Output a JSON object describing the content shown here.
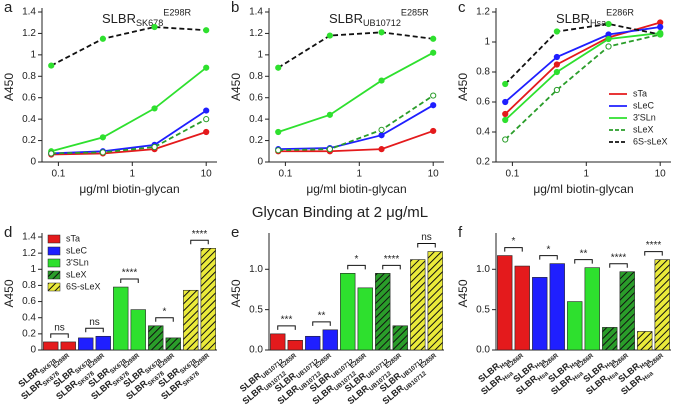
{
  "heading": "Glycan Binding at 2 μg/mL",
  "chart_data": [
    {
      "type": "line",
      "panel": "a",
      "title": {
        "text": "SLBR",
        "sub": "SK678",
        "sup": "E298R"
      },
      "x_label": "μg/ml biotin-glycan",
      "y_label": "A450",
      "log_x": true,
      "x": [
        0.08,
        0.4,
        2,
        10
      ],
      "xlim": [
        0.06,
        14
      ],
      "xticks": [
        0.1,
        1,
        10
      ],
      "ylim": [
        0,
        1.4
      ],
      "yticks": [
        0,
        0.2,
        0.4,
        0.6,
        0.8,
        1,
        1.2,
        1.4
      ],
      "series": [
        {
          "name": "sTa",
          "color": "#e41a1c",
          "values": [
            0.07,
            0.08,
            0.12,
            0.28
          ]
        },
        {
          "name": "sLeC",
          "color": "#1f1fff",
          "values": [
            0.08,
            0.1,
            0.16,
            0.48
          ]
        },
        {
          "name": "3'SLn",
          "color": "#2ee02e",
          "values": [
            0.1,
            0.23,
            0.5,
            0.88
          ]
        },
        {
          "name": "sLeX",
          "color": "#2a9d2a",
          "dashed": true,
          "open_markers": true,
          "values": [
            0.08,
            0.09,
            0.14,
            0.4
          ]
        },
        {
          "name": "6S-sLeX",
          "color": "#111111",
          "marker_color": "#2ee02e",
          "dashed": true,
          "values": [
            0.9,
            1.15,
            1.26,
            1.23
          ]
        }
      ]
    },
    {
      "type": "line",
      "panel": "b",
      "title": {
        "text": "SLBR",
        "sub": "UB10712",
        "sup": "E285R"
      },
      "x_label": "μg/ml biotin-glycan",
      "y_label": "A450",
      "log_x": true,
      "x": [
        0.08,
        0.4,
        2,
        10
      ],
      "xlim": [
        0.06,
        14
      ],
      "xticks": [
        0.1,
        1,
        10
      ],
      "ylim": [
        0,
        1.4
      ],
      "yticks": [
        0,
        0.2,
        0.4,
        0.6,
        0.8,
        1,
        1.2,
        1.4
      ],
      "series": [
        {
          "name": "sTa",
          "color": "#e41a1c",
          "values": [
            0.1,
            0.1,
            0.12,
            0.29
          ]
        },
        {
          "name": "sLeC",
          "color": "#1f1fff",
          "values": [
            0.12,
            0.13,
            0.25,
            0.53
          ]
        },
        {
          "name": "3'SLn",
          "color": "#2ee02e",
          "values": [
            0.28,
            0.44,
            0.76,
            1.02
          ]
        },
        {
          "name": "sLeX",
          "color": "#2a9d2a",
          "dashed": true,
          "open_markers": true,
          "values": [
            0.11,
            0.12,
            0.3,
            0.62
          ]
        },
        {
          "name": "6S-sLeX",
          "color": "#111111",
          "marker_color": "#2ee02e",
          "dashed": true,
          "values": [
            0.88,
            1.18,
            1.21,
            1.15
          ]
        }
      ]
    },
    {
      "type": "line",
      "panel": "c",
      "title": {
        "text": "SLBR",
        "sub": "Hsa",
        "sup": "E286R"
      },
      "x_label": "μg/ml biotin-glycan",
      "y_label": "A450",
      "log_x": true,
      "legend": "lower right",
      "x": [
        0.08,
        0.4,
        2,
        10
      ],
      "xlim": [
        0.06,
        14
      ],
      "xticks": [
        0.1,
        1,
        10
      ],
      "ylim": [
        0.2,
        1.2
      ],
      "yticks": [
        0.2,
        0.4,
        0.6,
        0.8,
        1,
        1.2
      ],
      "series": [
        {
          "name": "sTa",
          "color": "#e41a1c",
          "values": [
            0.52,
            0.85,
            1.03,
            1.13
          ]
        },
        {
          "name": "sLeC",
          "color": "#1f1fff",
          "values": [
            0.6,
            0.9,
            1.05,
            1.1
          ]
        },
        {
          "name": "3'SLn",
          "color": "#2ee02e",
          "values": [
            0.48,
            0.8,
            1.02,
            1.06
          ]
        },
        {
          "name": "sLeX",
          "color": "#2a9d2a",
          "dashed": true,
          "open_markers": true,
          "values": [
            0.35,
            0.68,
            0.97,
            1.05
          ]
        },
        {
          "name": "6S-sLeX",
          "color": "#111111",
          "marker_color": "#2ee02e",
          "dashed": true,
          "values": [
            0.72,
            1.07,
            1.12,
            1.05
          ]
        }
      ]
    },
    {
      "type": "bar",
      "panel": "d",
      "y_label": "A450",
      "legend": "upper left",
      "categories": [
        {
          "text": "SLBR",
          "sub": "SK678"
        },
        {
          "text": "SLBR",
          "sub": "SK678",
          "sup": "E298R"
        },
        {
          "text": "SLBR",
          "sub": "SK678"
        },
        {
          "text": "SLBR",
          "sub": "SK678",
          "sup": "E298R"
        },
        {
          "text": "SLBR",
          "sub": "SK678"
        },
        {
          "text": "SLBR",
          "sub": "SK678",
          "sup": "E298R"
        },
        {
          "text": "SLBR",
          "sub": "SK678"
        },
        {
          "text": "SLBR",
          "sub": "SK678",
          "sup": "E298R"
        },
        {
          "text": "SLBR",
          "sub": "SK678"
        },
        {
          "text": "SLBR",
          "sub": "SK678",
          "sup": "E298R"
        }
      ],
      "ylim": [
        0,
        1.4
      ],
      "yticks": [
        0,
        0.2,
        0.4,
        0.6,
        0.8,
        1,
        1.2,
        1.4
      ],
      "significance": [
        "ns",
        "ns",
        "****",
        "*",
        "****"
      ],
      "series": [
        {
          "name": "sTa",
          "color": "#e41a1c",
          "values": [
            0.1,
            0.1,
            null,
            null,
            null,
            null,
            null,
            null,
            null,
            null
          ]
        },
        {
          "name": "sLeC",
          "color": "#1f1fff",
          "values": [
            null,
            null,
            0.15,
            0.17,
            null,
            null,
            null,
            null,
            null,
            null
          ]
        },
        {
          "name": "3'SLn",
          "color": "#2ee02e",
          "values": [
            null,
            null,
            null,
            null,
            0.78,
            0.5,
            null,
            null,
            null,
            null
          ]
        },
        {
          "name": "sLeX",
          "color": "#2a9d2a",
          "hatch": true,
          "values": [
            null,
            null,
            null,
            null,
            null,
            null,
            0.3,
            0.15,
            null,
            null
          ]
        },
        {
          "name": "6S-sLeX",
          "color": "#eaea3a",
          "hatch": true,
          "values": [
            null,
            null,
            null,
            null,
            null,
            null,
            null,
            null,
            0.74,
            1.26
          ]
        }
      ]
    },
    {
      "type": "bar",
      "panel": "e",
      "y_label": "A450",
      "categories": [
        {
          "text": "SLBR",
          "sub": "UB10712"
        },
        {
          "text": "SLBR",
          "sub": "UB10712",
          "sup": "E285R"
        },
        {
          "text": "SLBR",
          "sub": "UB10712"
        },
        {
          "text": "SLBR",
          "sub": "UB10712",
          "sup": "E285R"
        },
        {
          "text": "SLBR",
          "sub": "UB10712"
        },
        {
          "text": "SLBR",
          "sub": "UB10712",
          "sup": "E285R"
        },
        {
          "text": "SLBR",
          "sub": "UB10712"
        },
        {
          "text": "SLBR",
          "sub": "UB10712",
          "sup": "E285R"
        },
        {
          "text": "SLBR",
          "sub": "UB10712"
        },
        {
          "text": "SLBR",
          "sub": "UB10712",
          "sup": "E285R"
        }
      ],
      "ylim": [
        0,
        1.4
      ],
      "yticks": [
        {
          "value": 0,
          "label": "0.0"
        },
        {
          "value": 0.5,
          "label": "0.5"
        },
        {
          "value": 1,
          "label": "1.0"
        }
      ],
      "significance": [
        "***",
        "**",
        "*",
        "****",
        "ns"
      ],
      "series": [
        {
          "name": "sTa",
          "color": "#e41a1c",
          "values": [
            0.2,
            0.12,
            null,
            null,
            null,
            null,
            null,
            null,
            null,
            null
          ]
        },
        {
          "name": "sLeC",
          "color": "#1f1fff",
          "values": [
            null,
            null,
            0.17,
            0.25,
            null,
            null,
            null,
            null,
            null,
            null
          ]
        },
        {
          "name": "3'SLn",
          "color": "#2ee02e",
          "values": [
            null,
            null,
            null,
            null,
            0.95,
            0.77,
            null,
            null,
            null,
            null
          ]
        },
        {
          "name": "sLeX",
          "color": "#2a9d2a",
          "hatch": true,
          "values": [
            null,
            null,
            null,
            null,
            null,
            null,
            0.95,
            0.3,
            null,
            null
          ]
        },
        {
          "name": "6S-sLeX",
          "color": "#eaea3a",
          "hatch": true,
          "values": [
            null,
            null,
            null,
            null,
            null,
            null,
            null,
            null,
            1.12,
            1.22
          ]
        }
      ]
    },
    {
      "type": "bar",
      "panel": "f",
      "y_label": "A450",
      "categories": [
        {
          "text": "SLBR",
          "sub": "Hsa"
        },
        {
          "text": "SLBR",
          "sub": "Hsa",
          "sup": "E286R"
        },
        {
          "text": "SLBR",
          "sub": "Hsa"
        },
        {
          "text": "SLBR",
          "sub": "Hsa",
          "sup": "E286R"
        },
        {
          "text": "SLBR",
          "sub": "Hsa"
        },
        {
          "text": "SLBR",
          "sub": "Hsa",
          "sup": "E286R"
        },
        {
          "text": "SLBR",
          "sub": "Hsa"
        },
        {
          "text": "SLBR",
          "sub": "Hsa",
          "sup": "E286R"
        },
        {
          "text": "SLBR",
          "sub": "Hsa"
        },
        {
          "text": "SLBR",
          "sub": "Hsa",
          "sup": "E286R"
        }
      ],
      "ylim": [
        0,
        1.4
      ],
      "yticks": [
        {
          "value": 0,
          "label": "0.0"
        },
        {
          "value": 0.5,
          "label": "0.5"
        },
        {
          "value": 1,
          "label": "1.0"
        }
      ],
      "significance": [
        "*",
        "*",
        "**",
        "****",
        "****"
      ],
      "series": [
        {
          "name": "sTa",
          "color": "#e41a1c",
          "values": [
            1.17,
            1.04,
            null,
            null,
            null,
            null,
            null,
            null,
            null,
            null
          ]
        },
        {
          "name": "sLeC",
          "color": "#1f1fff",
          "values": [
            null,
            null,
            0.9,
            1.07,
            null,
            null,
            null,
            null,
            null,
            null
          ]
        },
        {
          "name": "3'SLn",
          "color": "#2ee02e",
          "values": [
            null,
            null,
            null,
            null,
            0.6,
            1.02,
            null,
            null,
            null,
            null
          ]
        },
        {
          "name": "sLeX",
          "color": "#2a9d2a",
          "hatch": true,
          "values": [
            null,
            null,
            null,
            null,
            null,
            null,
            0.28,
            0.97,
            null,
            null
          ]
        },
        {
          "name": "6S-sLeX",
          "color": "#eaea3a",
          "hatch": true,
          "values": [
            null,
            null,
            null,
            null,
            null,
            null,
            null,
            null,
            0.23,
            1.12
          ]
        }
      ]
    }
  ]
}
